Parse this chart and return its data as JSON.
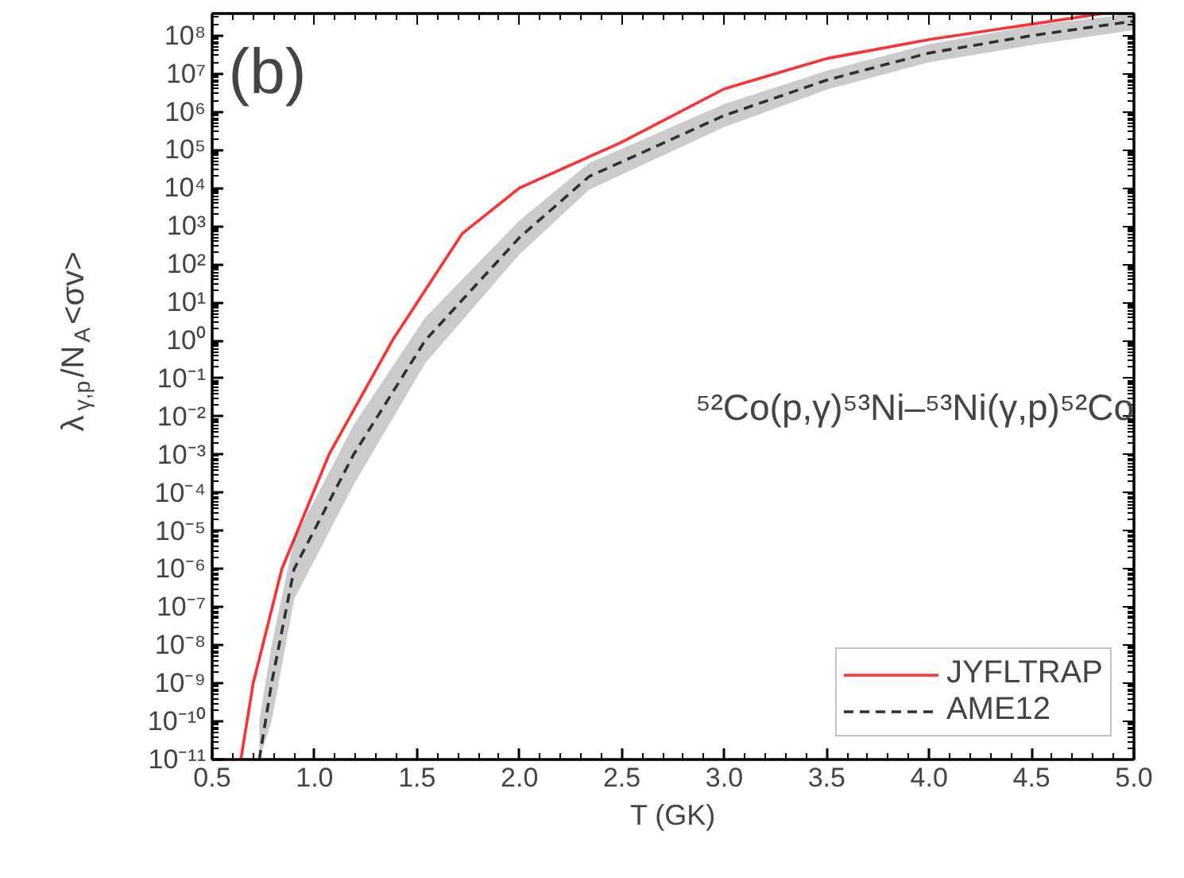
{
  "chart_data": {
    "type": "line",
    "xlabel": "T (GK)",
    "ylabel": "λ$_{γ,p}$/N$_{A}$<σv>",
    "log": "y",
    "xlim": [
      0.5,
      5.0
    ],
    "ylim": [
      1e-11,
      380000000.0
    ],
    "xticks": [
      0.5,
      {
        "value": 1.0,
        "label": "1.0"
      },
      1.5,
      {
        "value": 2.0,
        "label": "2.0"
      },
      2.5,
      {
        "value": 3.0,
        "label": "3.0"
      },
      3.5,
      {
        "value": 4.0,
        "label": "4.0"
      },
      4.5,
      {
        "value": 5.0,
        "label": "5.0"
      }
    ],
    "yticks": [
      {
        "value": 1e-11,
        "label": "10⁻¹¹"
      },
      {
        "value": 1e-10,
        "label": "10⁻¹⁰"
      },
      {
        "value": 1e-09,
        "label": "10⁻⁹"
      },
      {
        "value": 1e-08,
        "label": "10⁻⁸"
      },
      {
        "value": 1e-07,
        "label": "10⁻⁷"
      },
      {
        "value": 1e-06,
        "label": "10⁻⁶"
      },
      {
        "value": 1e-05,
        "label": "10⁻⁵"
      },
      {
        "value": 0.0001,
        "label": "10⁻⁴"
      },
      {
        "value": 0.001,
        "label": "10⁻³"
      },
      {
        "value": 0.01,
        "label": "10⁻²"
      },
      {
        "value": 0.1,
        "label": "10⁻¹"
      },
      {
        "value": 1,
        "label": "10⁰"
      },
      {
        "value": 10,
        "label": "10¹"
      },
      {
        "value": 100,
        "label": "10²"
      },
      {
        "value": 1000,
        "label": "10³"
      },
      {
        "value": 10000.0,
        "label": "10⁴"
      },
      {
        "value": 100000.0,
        "label": "10⁵"
      },
      {
        "value": 1000000.0,
        "label": "10⁶"
      },
      {
        "value": 10000000.0,
        "label": "10⁷"
      },
      {
        "value": 100000000.0,
        "label": "10⁸"
      }
    ],
    "grid": false,
    "legend": "bottom right",
    "annotations": [
      "(b)",
      "⁵²Co(p,γ)⁵³Ni–⁵³Ni(γ,p)⁵²Co"
    ],
    "series": [
      {
        "name": "JYFLTRAP",
        "color": "#ff3030",
        "line_style": "solid",
        "x": [
          0.64,
          0.7,
          0.84,
          1.07,
          1.38,
          1.72,
          2.0,
          2.5,
          3.0,
          3.5,
          4.0,
          4.5,
          4.85
        ],
        "values": [
          1e-11,
          1e-09,
          1e-06,
          0.001,
          1,
          630,
          10000.0,
          160000.0,
          4000000.0,
          25000000.0,
          79000000.0,
          200000000.0,
          380000000.0
        ]
      },
      {
        "name": "AME12",
        "color": "#303030",
        "line_style": "dashed",
        "x": [
          0.73,
          0.79,
          0.9,
          1.19,
          1.54,
          2.0,
          2.34,
          3.0,
          3.5,
          4.0,
          4.5,
          5.0
        ],
        "values": [
          1e-11,
          1e-09,
          1e-06,
          0.001,
          1,
          500,
          20000.0,
          800000.0,
          6800000.0,
          35000000.0,
          100000000.0,
          240000000.0
        ],
        "lower": [
          1e-11,
          1e-10,
          1.6e-07,
          0.00016,
          0.25,
          180,
          9000.0,
          400000.0,
          3800000.0,
          20000000.0,
          56000000.0,
          140000000.0
        ],
        "upper": [
          1e-10,
          1e-08,
          6e-06,
          0.006,
          4,
          1400,
          45000.0,
          1600000.0,
          12000000.0,
          60000000.0,
          180000000.0,
          380000000.0
        ]
      }
    ]
  }
}
